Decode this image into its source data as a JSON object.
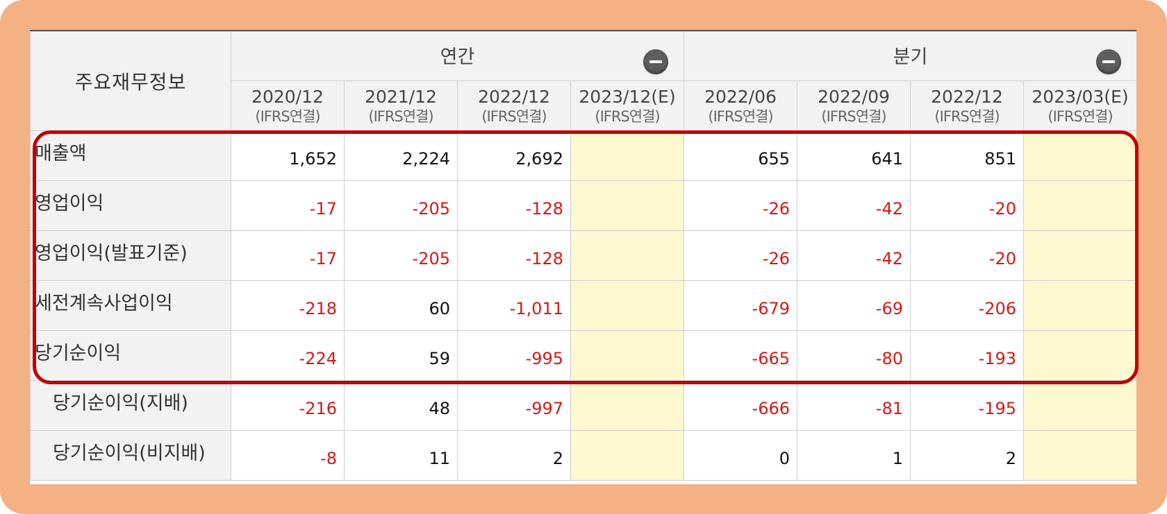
{
  "table": {
    "corner_label": "주요재무정보",
    "groups": [
      {
        "label": "연간",
        "colspan": 4
      },
      {
        "label": "분기",
        "colspan": 4
      }
    ],
    "periods": [
      {
        "date": "2020/12",
        "basis": "(IFRS연결)",
        "estimate": false
      },
      {
        "date": "2021/12",
        "basis": "(IFRS연결)",
        "estimate": false
      },
      {
        "date": "2022/12",
        "basis": "(IFRS연결)",
        "estimate": false
      },
      {
        "date": "2023/12(E)",
        "basis": "(IFRS연결)",
        "estimate": true
      },
      {
        "date": "2022/06",
        "basis": "(IFRS연결)",
        "estimate": false
      },
      {
        "date": "2022/09",
        "basis": "(IFRS연결)",
        "estimate": false
      },
      {
        "date": "2022/12",
        "basis": "(IFRS연결)",
        "estimate": false
      },
      {
        "date": "2023/03(E)",
        "basis": "(IFRS연결)",
        "estimate": true
      }
    ],
    "rows": [
      {
        "label": "매출액",
        "sub": false,
        "values": [
          "1,652",
          "2,224",
          "2,692",
          "",
          "655",
          "641",
          "851",
          ""
        ]
      },
      {
        "label": "영업이익",
        "sub": false,
        "values": [
          "-17",
          "-205",
          "-128",
          "",
          "-26",
          "-42",
          "-20",
          ""
        ]
      },
      {
        "label": "영업이익(발표기준)",
        "sub": false,
        "values": [
          "-17",
          "-205",
          "-128",
          "",
          "-26",
          "-42",
          "-20",
          ""
        ]
      },
      {
        "label": "세전계속사업이익",
        "sub": false,
        "values": [
          "-218",
          "60",
          "-1,011",
          "",
          "-679",
          "-69",
          "-206",
          ""
        ]
      },
      {
        "label": "당기순이익",
        "sub": false,
        "values": [
          "-224",
          "59",
          "-995",
          "",
          "-665",
          "-80",
          "-193",
          ""
        ]
      },
      {
        "label": "당기순이익(지배)",
        "sub": true,
        "values": [
          "-216",
          "48",
          "-997",
          "",
          "-666",
          "-81",
          "-195",
          ""
        ]
      },
      {
        "label": "당기순이익(비지배)",
        "sub": true,
        "values": [
          "-8",
          "11",
          "2",
          "",
          "0",
          "1",
          "2",
          ""
        ]
      }
    ]
  },
  "colors": {
    "frame": "#f4b184",
    "highlight": "#c00000",
    "negative": "#d21919",
    "estimate_bg": "#fef8d0",
    "header_bg": "#f2f2f2"
  }
}
